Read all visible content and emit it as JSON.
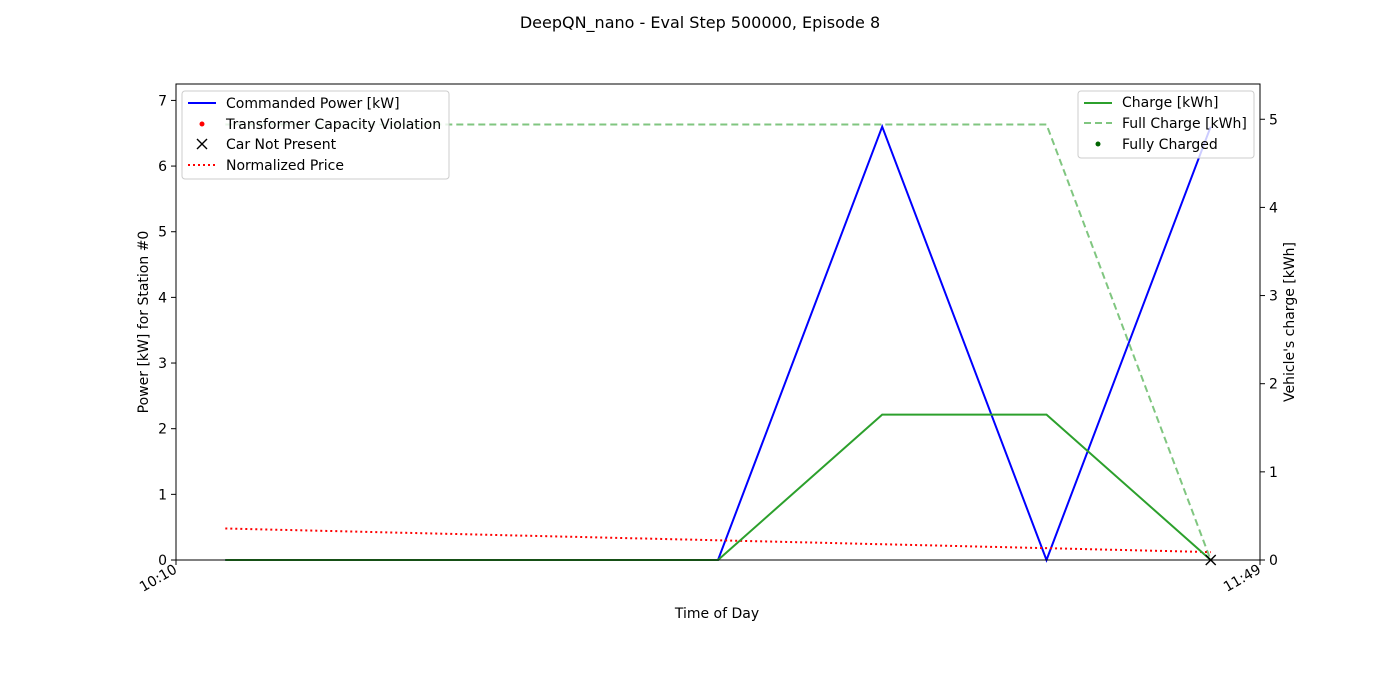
{
  "chart_data": {
    "type": "line",
    "title": "DeepQN_nano - Eval Step 500000, Episode 8",
    "xlabel": "Time of Day",
    "ylabel": "Power [kW] for Station #0",
    "ylabel_right": "Vehicle's charge [kWh]",
    "x_tick_labels": [
      "10:10",
      "11:49"
    ],
    "x": [
      0,
      1,
      2,
      3,
      4,
      5,
      6
    ],
    "xlim": [
      -0.3,
      6.3
    ],
    "ylim": [
      0,
      7.25
    ],
    "ylim_right": [
      0,
      5.4
    ],
    "y_ticks": [
      0,
      1,
      2,
      3,
      4,
      5,
      6,
      7
    ],
    "y_ticks_right": [
      0,
      1,
      2,
      3,
      4,
      5
    ],
    "grid": false,
    "series": [
      {
        "name": "Commanded Power [kW]",
        "axis": "left",
        "color": "#0000ff",
        "style": "solid",
        "x": [
          0,
          3,
          4,
          5,
          6
        ],
        "values": [
          0,
          0,
          6.6,
          0,
          6.6
        ]
      },
      {
        "name": "Normalized Price",
        "axis": "left",
        "color": "#ff0000",
        "style": "dotted",
        "x": [
          0,
          6
        ],
        "values": [
          0.48,
          0.12
        ]
      },
      {
        "name": "Charge [kWh]",
        "axis": "right",
        "color": "#2ca02c",
        "style": "solid",
        "x": [
          0,
          3,
          4,
          5,
          6
        ],
        "values": [
          0,
          0,
          1.65,
          1.65,
          0
        ]
      },
      {
        "name": "Full Charge [kWh]",
        "axis": "right",
        "color": "#2ca02c",
        "style": "dashed",
        "x": [
          0,
          5,
          6
        ],
        "values": [
          4.94,
          4.94,
          0
        ]
      }
    ],
    "markers": [
      {
        "name": "Transformer Capacity Violation",
        "axis": "left",
        "color": "#ff0000",
        "shape": "dot",
        "x": [],
        "values": []
      },
      {
        "name": "Car Not Present",
        "axis": "left",
        "color": "#000000",
        "shape": "x",
        "x": [
          6
        ],
        "values": [
          0
        ]
      },
      {
        "name": "Fully Charged",
        "axis": "right",
        "color": "#006400",
        "shape": "dot",
        "x": [],
        "values": []
      }
    ],
    "legend_left": {
      "placement": "top-left",
      "entries": [
        "Commanded Power [kW]",
        "Transformer Capacity Violation",
        "Car Not Present",
        "Normalized Price"
      ]
    },
    "legend_right": {
      "placement": "top-right",
      "entries": [
        "Charge [kWh]",
        "Full Charge [kWh]",
        "Fully Charged"
      ]
    }
  }
}
